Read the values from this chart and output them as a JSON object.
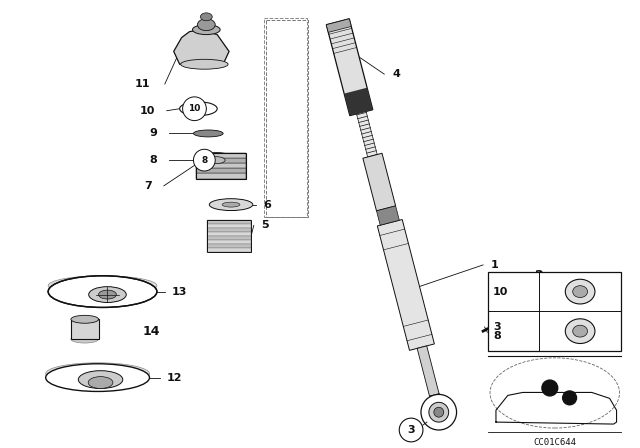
{
  "bg_color": "#ffffff",
  "dark": "#111111",
  "gray1": "#cccccc",
  "gray2": "#aaaaaa",
  "gray3": "#888888",
  "gray4": "#555555",
  "watermark": "CC01C644"
}
